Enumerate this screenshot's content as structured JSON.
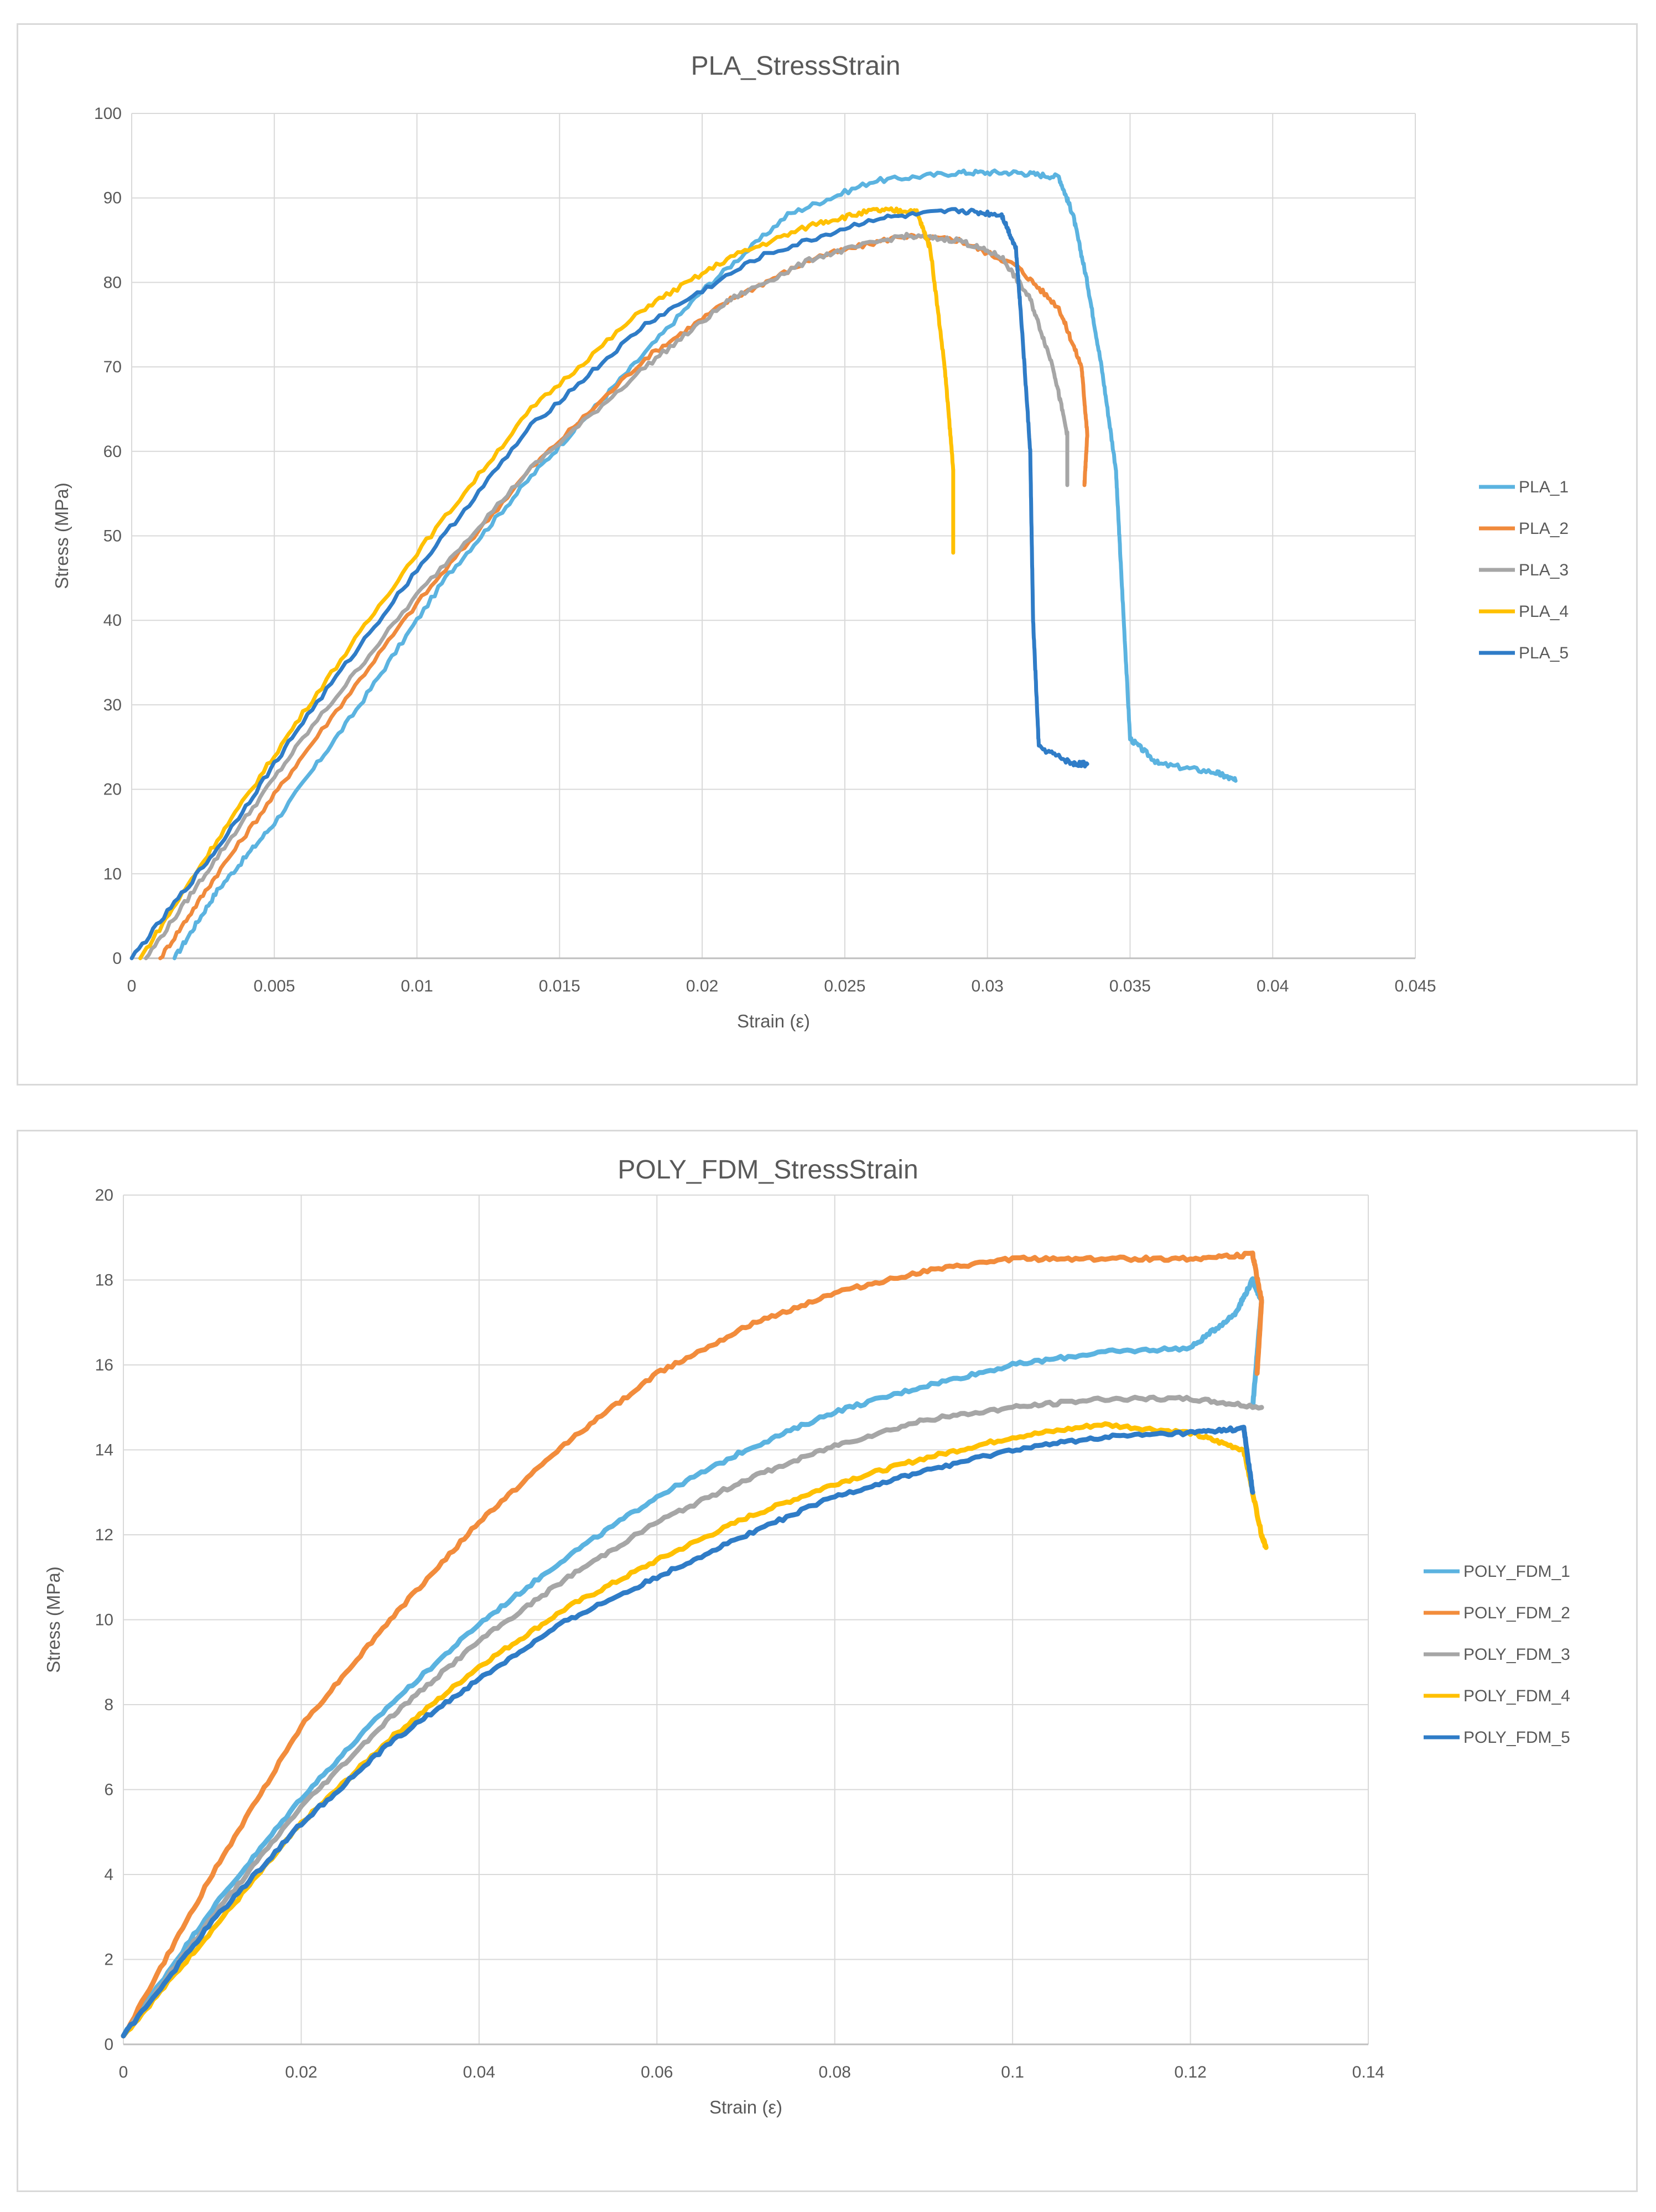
{
  "chart_data": [
    {
      "type": "line",
      "title": "PLA_StressStrain",
      "xlabel": "Strain (ε)",
      "ylabel": "Stress (MPa)",
      "xlim": [
        0,
        0.045
      ],
      "ylim": [
        0,
        100
      ],
      "xticks": [
        "0",
        "0.005",
        "0.01",
        "0.015",
        "0.02",
        "0.025",
        "0.03",
        "0.035",
        "0.04",
        "0.045"
      ],
      "yticks": [
        "0",
        "10",
        "20",
        "30",
        "40",
        "50",
        "60",
        "70",
        "80",
        "90",
        "100"
      ],
      "grid": true,
      "legend_position": "right",
      "series": [
        {
          "name": "PLA_1",
          "color": "#5bb3e0",
          "x": [
            0.0015,
            0.003,
            0.005,
            0.008,
            0.011,
            0.014,
            0.017,
            0.02,
            0.023,
            0.026,
            0.029,
            0.031,
            0.0325,
            0.033,
            0.0335,
            0.034,
            0.0345,
            0.0347,
            0.035,
            0.036,
            0.038,
            0.0387
          ],
          "y": [
            0,
            8,
            16,
            30,
            45,
            57,
            68,
            79,
            88,
            92,
            93,
            93,
            92.5,
            88,
            80,
            70,
            58,
            45,
            26,
            23,
            22,
            21
          ]
        },
        {
          "name": "PLA_2",
          "color": "#f08a3c",
          "x": [
            0.001,
            0.003,
            0.006,
            0.01,
            0.014,
            0.018,
            0.021,
            0.024,
            0.027,
            0.029,
            0.031,
            0.0325,
            0.0333,
            0.0335,
            0.0334
          ],
          "y": [
            0,
            10,
            24,
            42,
            58,
            71,
            78,
            83,
            85.5,
            85,
            82,
            77,
            70,
            62,
            56
          ]
        },
        {
          "name": "PLA_3",
          "color": "#a6a6a6",
          "x": [
            0.0005,
            0.003,
            0.006,
            0.01,
            0.014,
            0.018,
            0.021,
            0.024,
            0.027,
            0.029,
            0.0305,
            0.0315,
            0.0323,
            0.0328,
            0.0328
          ],
          "y": [
            0,
            12,
            26,
            43,
            58,
            70,
            78,
            83,
            85.5,
            85,
            83,
            78,
            70,
            62,
            56
          ]
        },
        {
          "name": "PLA_4",
          "color": "#ffc000",
          "x": [
            0.0003,
            0.003,
            0.006,
            0.01,
            0.014,
            0.018,
            0.021,
            0.024,
            0.026,
            0.0275,
            0.028,
            0.0285,
            0.0288,
            0.0288
          ],
          "y": [
            0,
            14,
            29,
            48,
            65,
            77,
            83,
            87,
            88.5,
            88.5,
            84,
            70,
            58,
            48
          ]
        },
        {
          "name": "PLA_5",
          "color": "#2f7cc7",
          "x": [
            0,
            0.003,
            0.006,
            0.01,
            0.014,
            0.018,
            0.022,
            0.026,
            0.029,
            0.0305,
            0.031,
            0.0312,
            0.0315,
            0.0316,
            0.0318,
            0.033,
            0.0335
          ],
          "y": [
            0,
            13,
            28,
            46,
            63,
            75,
            83,
            87.5,
            88.5,
            88,
            84,
            75,
            60,
            40,
            25,
            23,
            23
          ]
        }
      ]
    },
    {
      "type": "line",
      "title": "POLY_FDM_StressStrain",
      "xlabel": "Strain (ε)",
      "ylabel": "Stress (MPa)",
      "xlim": [
        0,
        0.14
      ],
      "ylim": [
        0,
        20
      ],
      "xticks": [
        "0",
        "0.02",
        "0.04",
        "0.06",
        "0.08",
        "0.1",
        "0.12",
        "0.14"
      ],
      "yticks": [
        "0",
        "2",
        "4",
        "6",
        "8",
        "10",
        "12",
        "14",
        "16",
        "18",
        "20"
      ],
      "grid": true,
      "legend_position": "right",
      "series": [
        {
          "name": "POLY_FDM_1",
          "color": "#5bb3e0",
          "x": [
            0,
            0.01,
            0.02,
            0.03,
            0.04,
            0.05,
            0.06,
            0.07,
            0.08,
            0.09,
            0.1,
            0.11,
            0.12,
            0.125,
            0.127,
            0.128,
            0.127
          ],
          "y": [
            0.2,
            3.2,
            5.8,
            8.0,
            9.9,
            11.5,
            12.9,
            14.0,
            14.9,
            15.5,
            16.0,
            16.3,
            16.4,
            17.2,
            18.0,
            17.5,
            15.0
          ]
        },
        {
          "name": "POLY_FDM_2",
          "color": "#f28c3c",
          "x": [
            0,
            0.01,
            0.02,
            0.03,
            0.04,
            0.05,
            0.06,
            0.07,
            0.08,
            0.09,
            0.1,
            0.11,
            0.12,
            0.127,
            0.128,
            0.1275
          ],
          "y": [
            0.2,
            4.0,
            7.5,
            10.0,
            12.3,
            14.2,
            15.8,
            16.9,
            17.7,
            18.2,
            18.5,
            18.5,
            18.5,
            18.6,
            17.5,
            15.8
          ]
        },
        {
          "name": "POLY_FDM_3",
          "color": "#a6a6a6",
          "x": [
            0,
            0.01,
            0.02,
            0.03,
            0.04,
            0.05,
            0.06,
            0.07,
            0.08,
            0.09,
            0.1,
            0.11,
            0.12,
            0.128
          ],
          "y": [
            0.2,
            3.0,
            5.6,
            7.7,
            9.5,
            11.0,
            12.3,
            13.3,
            14.1,
            14.7,
            15.0,
            15.2,
            15.2,
            15.0
          ]
        },
        {
          "name": "POLY_FDM_4",
          "color": "#ffc000",
          "x": [
            0,
            0.01,
            0.02,
            0.03,
            0.04,
            0.05,
            0.06,
            0.07,
            0.08,
            0.09,
            0.1,
            0.11,
            0.12,
            0.126,
            0.128,
            0.1285
          ],
          "y": [
            0.2,
            2.7,
            5.2,
            7.2,
            8.9,
            10.3,
            11.4,
            12.4,
            13.2,
            13.8,
            14.3,
            14.6,
            14.4,
            14.0,
            12.0,
            11.7
          ]
        },
        {
          "name": "POLY_FDM_5",
          "color": "#2f7cc7",
          "x": [
            0,
            0.01,
            0.02,
            0.03,
            0.04,
            0.05,
            0.06,
            0.07,
            0.08,
            0.09,
            0.1,
            0.11,
            0.12,
            0.126,
            0.127
          ],
          "y": [
            0.2,
            2.9,
            5.2,
            7.1,
            8.6,
            10.0,
            11.0,
            12.0,
            12.9,
            13.5,
            14.0,
            14.3,
            14.4,
            14.5,
            13.0
          ]
        }
      ]
    }
  ]
}
